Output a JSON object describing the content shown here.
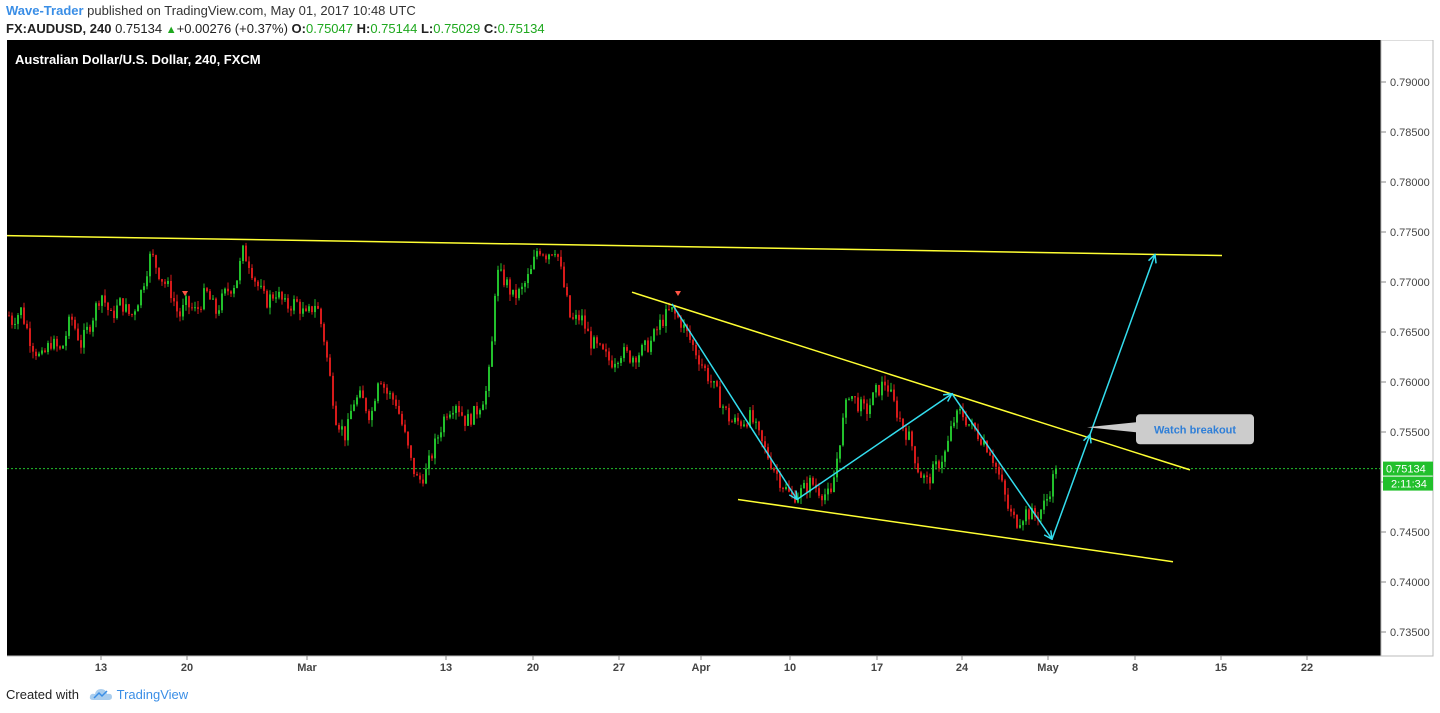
{
  "header": {
    "author": "Wave-Trader",
    "published_text": " published on TradingView.com, May 01, 2017 10:48 UTC",
    "symbol": "FX:AUDUSD, 240",
    "last": "0.75134",
    "change": "+0.00276 (+0.37%)",
    "o_label": "O:",
    "o_value": "0.75047",
    "h_label": "H:",
    "h_value": "0.75144",
    "l_label": "L:",
    "l_value": "0.75029",
    "c_label": "C:",
    "c_value": "0.75134"
  },
  "footer": {
    "created_with": "Created with",
    "brand": "TradingView"
  },
  "colors": {
    "background": "#000000",
    "up_candle": "#22c02c",
    "down_candle": "#d61a1a",
    "trendline": "#ffff33",
    "wave": "#33ddee",
    "last_price_line": "#22c02c",
    "axis_text": "#444444"
  },
  "chart_data": {
    "type": "candlestick",
    "title": "Australian Dollar/U.S. Dollar, 240, FXCM",
    "ylim": [
      0.7325,
      0.7935
    ],
    "y_ticks": [
      "0.79000",
      "0.78500",
      "0.78000",
      "0.77500",
      "0.77000",
      "0.76500",
      "0.76000",
      "0.75500",
      "0.75000",
      "0.74500",
      "0.74000",
      "0.73500"
    ],
    "x_ticks": [
      "13",
      "20",
      "Mar",
      "13",
      "20",
      "27",
      "Apr",
      "10",
      "17",
      "24",
      "May",
      "8",
      "15",
      "22"
    ],
    "last_price": "0.75134",
    "countdown": "2:11:34",
    "price_path": [
      [
        0,
        0.7693
      ],
      [
        10,
        0.766
      ],
      [
        20,
        0.7672
      ],
      [
        30,
        0.764
      ],
      [
        40,
        0.7622
      ],
      [
        50,
        0.764
      ],
      [
        60,
        0.763
      ],
      [
        70,
        0.7665
      ],
      [
        80,
        0.7638
      ],
      [
        90,
        0.766
      ],
      [
        100,
        0.769
      ],
      [
        110,
        0.7665
      ],
      [
        120,
        0.768
      ],
      [
        130,
        0.7665
      ],
      [
        140,
        0.769
      ],
      [
        145,
        0.771
      ],
      [
        150,
        0.7728
      ],
      [
        160,
        0.7705
      ],
      [
        170,
        0.769
      ],
      [
        178,
        0.7665
      ],
      [
        185,
        0.7678
      ],
      [
        195,
        0.767
      ],
      [
        205,
        0.769
      ],
      [
        215,
        0.767
      ],
      [
        225,
        0.769
      ],
      [
        235,
        0.77
      ],
      [
        242,
        0.773
      ],
      [
        248,
        0.772
      ],
      [
        255,
        0.77
      ],
      [
        265,
        0.768
      ],
      [
        275,
        0.769
      ],
      [
        285,
        0.7675
      ],
      [
        295,
        0.768
      ],
      [
        305,
        0.7665
      ],
      [
        315,
        0.768
      ],
      [
        322,
        0.765
      ],
      [
        328,
        0.761
      ],
      [
        335,
        0.7565
      ],
      [
        345,
        0.7545
      ],
      [
        352,
        0.758
      ],
      [
        360,
        0.7585
      ],
      [
        370,
        0.7565
      ],
      [
        378,
        0.761
      ],
      [
        385,
        0.759
      ],
      [
        395,
        0.758
      ],
      [
        403,
        0.755
      ],
      [
        410,
        0.752
      ],
      [
        417,
        0.75
      ],
      [
        425,
        0.751
      ],
      [
        435,
        0.754
      ],
      [
        445,
        0.757
      ],
      [
        455,
        0.758
      ],
      [
        465,
        0.756
      ],
      [
        475,
        0.757
      ],
      [
        485,
        0.759
      ],
      [
        490,
        0.762
      ],
      [
        495,
        0.771
      ],
      [
        505,
        0.77
      ],
      [
        512,
        0.7685
      ],
      [
        520,
        0.769
      ],
      [
        530,
        0.771
      ],
      [
        537,
        0.7735
      ],
      [
        545,
        0.7728
      ],
      [
        555,
        0.7735
      ],
      [
        562,
        0.77
      ],
      [
        570,
        0.766
      ],
      [
        580,
        0.7665
      ],
      [
        590,
        0.764
      ],
      [
        600,
        0.763
      ],
      [
        610,
        0.762
      ],
      [
        620,
        0.763
      ],
      [
        630,
        0.7625
      ],
      [
        640,
        0.763
      ],
      [
        650,
        0.764
      ],
      [
        660,
        0.766
      ],
      [
        670,
        0.7672
      ],
      [
        680,
        0.766
      ],
      [
        690,
        0.764
      ],
      [
        700,
        0.762
      ],
      [
        710,
        0.76
      ],
      [
        720,
        0.758
      ],
      [
        730,
        0.756
      ],
      [
        740,
        0.756
      ],
      [
        750,
        0.7565
      ],
      [
        760,
        0.754
      ],
      [
        770,
        0.752
      ],
      [
        780,
        0.75
      ],
      [
        790,
        0.7485
      ],
      [
        800,
        0.749
      ],
      [
        810,
        0.75
      ],
      [
        820,
        0.749
      ],
      [
        830,
        0.7485
      ],
      [
        840,
        0.755
      ],
      [
        848,
        0.759
      ],
      [
        855,
        0.758
      ],
      [
        865,
        0.757
      ],
      [
        875,
        0.759
      ],
      [
        885,
        0.76
      ],
      [
        892,
        0.758
      ],
      [
        900,
        0.756
      ],
      [
        910,
        0.754
      ],
      [
        918,
        0.751
      ],
      [
        926,
        0.75
      ],
      [
        935,
        0.7515
      ],
      [
        945,
        0.753
      ],
      [
        952,
        0.756
      ],
      [
        960,
        0.757
      ],
      [
        970,
        0.7555
      ],
      [
        980,
        0.7545
      ],
      [
        990,
        0.753
      ],
      [
        1000,
        0.75
      ],
      [
        1008,
        0.747
      ],
      [
        1015,
        0.746
      ],
      [
        1025,
        0.747
      ],
      [
        1035,
        0.7465
      ],
      [
        1045,
        0.748
      ],
      [
        1055,
        0.7513
      ]
    ],
    "trendlines": [
      {
        "from": [
          7,
          0.77464
        ],
        "to": [
          1222,
          0.77265
        ]
      },
      {
        "from": [
          632,
          0.76898
        ],
        "to": [
          1190,
          0.75121
        ]
      },
      {
        "from": [
          738,
          0.74825
        ],
        "to": [
          1173,
          0.74203
        ]
      }
    ],
    "wave_path": [
      [
        672,
        0.76781
      ],
      [
        797,
        0.74825
      ],
      [
        952,
        0.75883
      ],
      [
        1052,
        0.74428
      ],
      [
        1090,
        0.75475
      ]
    ],
    "projection_arrow": {
      "from": [
        1090,
        0.75475
      ],
      "to": [
        1155,
        0.77275
      ]
    },
    "callout": {
      "text": "Watch breakout",
      "anchor": [
        1087,
        0.75547
      ]
    },
    "markers": [
      [
        185,
        0.7688
      ],
      [
        678,
        0.7688
      ]
    ]
  }
}
